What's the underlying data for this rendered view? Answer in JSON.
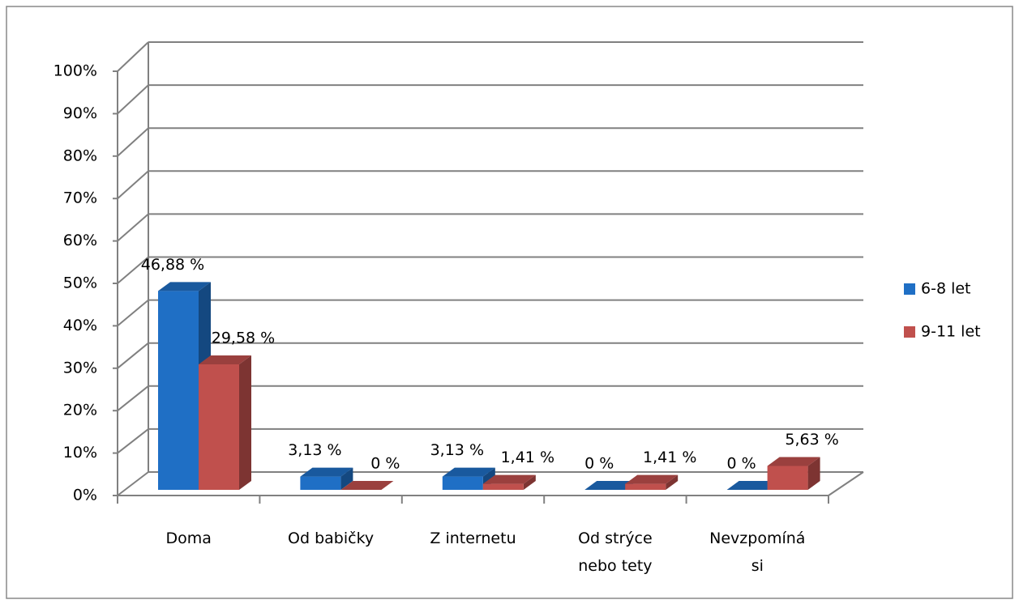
{
  "chart_data": {
    "type": "bar3d",
    "categories": [
      "Doma",
      "Od babičky",
      "Z internetu",
      "Od strýce\nnebo tety",
      "Nevzpomíná\nsi"
    ],
    "series": [
      {
        "name": "6-8 let",
        "color": "#1f6fc5",
        "values": [
          46.88,
          3.13,
          3.13,
          0,
          0
        ],
        "value_labels": [
          "46,88 %",
          "3,13 %",
          "3,13 %",
          "0 %",
          "0 %"
        ]
      },
      {
        "name": "9-11 let",
        "color": "#c0504d",
        "values": [
          29.58,
          0,
          1.41,
          1.41,
          5.63
        ],
        "value_labels": [
          "29,58 %",
          "0 %",
          "1,41 %",
          "1,41 %",
          "5,63 %"
        ]
      }
    ],
    "ylim": [
      0,
      100
    ],
    "yticks": [
      {
        "value": 0,
        "label": "0%"
      },
      {
        "value": 10,
        "label": "10%"
      },
      {
        "value": 20,
        "label": "20%"
      },
      {
        "value": 30,
        "label": "30%"
      },
      {
        "value": 40,
        "label": "40%"
      },
      {
        "value": 50,
        "label": "50%"
      },
      {
        "value": 60,
        "label": "60%"
      },
      {
        "value": 70,
        "label": "70%"
      },
      {
        "value": 80,
        "label": "80%"
      },
      {
        "value": 90,
        "label": "90%"
      },
      {
        "value": 100,
        "label": "100%"
      }
    ],
    "grid": true,
    "legend": "right"
  }
}
